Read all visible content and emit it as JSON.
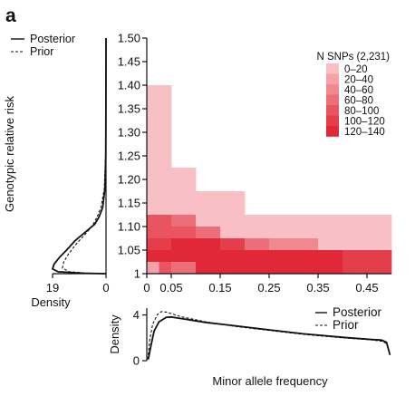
{
  "panel_label": "a",
  "chart_data": [
    {
      "type": "heatmap",
      "xlabel": "",
      "ylabel": "Genotypic relative risk",
      "x_ticks": [
        "0",
        "0.05",
        "0.15",
        "0.25",
        "0.35",
        "0.45"
      ],
      "x_tick_values": [
        0,
        0.05,
        0.15,
        0.25,
        0.35,
        0.45
      ],
      "y_ticks": [
        "1",
        "1.05",
        "1.10",
        "1.15",
        "1.20",
        "1.25",
        "1.30",
        "1.35",
        "1.40",
        "1.45",
        "1.50"
      ],
      "y_tick_values": [
        1,
        1.05,
        1.1,
        1.15,
        1.2,
        1.25,
        1.3,
        1.35,
        1.4,
        1.45,
        1.5
      ],
      "xlim": [
        0,
        0.5
      ],
      "ylim": [
        1,
        1.5
      ],
      "legend": {
        "title": "N SNPs (2,231)",
        "position": "top-right",
        "bins": [
          "0–20",
          "20–40",
          "40–60",
          "60–80",
          "80–100",
          "100–120",
          "120–140"
        ],
        "colors": [
          "#f8c0c4",
          "#f4a2a8",
          "#f08890",
          "#ec6e78",
          "#e85460",
          "#e43e4c",
          "#e02838"
        ]
      },
      "cells": [
        {
          "x0": 0,
          "x1": 0.05,
          "y0": 1.125,
          "y1": 1.4,
          "bin": 0
        },
        {
          "x0": 0.05,
          "x1": 0.1,
          "y0": 1.125,
          "y1": 1.225,
          "bin": 0
        },
        {
          "x0": 0.1,
          "x1": 0.15,
          "y0": 1.125,
          "y1": 1.175,
          "bin": 0
        },
        {
          "x0": 0.15,
          "x1": 0.2,
          "y0": 1.1,
          "y1": 1.175,
          "bin": 0
        },
        {
          "x0": 0.2,
          "x1": 0.5,
          "y0": 1.1,
          "y1": 1.125,
          "bin": 0
        },
        {
          "x0": 0,
          "x1": 0.05,
          "y0": 1.1,
          "y1": 1.125,
          "bin": 4
        },
        {
          "x0": 0.05,
          "x1": 0.1,
          "y0": 1.1,
          "y1": 1.125,
          "bin": 3
        },
        {
          "x0": 0.1,
          "x1": 0.15,
          "y0": 1.1,
          "y1": 1.125,
          "bin": 0
        },
        {
          "x0": 0.15,
          "x1": 0.2,
          "y0": 1.1,
          "y1": 1.125,
          "bin": 0
        },
        {
          "x0": 0,
          "x1": 0.05,
          "y0": 1.075,
          "y1": 1.1,
          "bin": 4
        },
        {
          "x0": 0.05,
          "x1": 0.1,
          "y0": 1.075,
          "y1": 1.1,
          "bin": 4
        },
        {
          "x0": 0.1,
          "x1": 0.15,
          "y0": 1.075,
          "y1": 1.1,
          "bin": 3
        },
        {
          "x0": 0.15,
          "x1": 0.5,
          "y0": 1.075,
          "y1": 1.1,
          "bin": 0
        },
        {
          "x0": 0,
          "x1": 0.05,
          "y0": 1.05,
          "y1": 1.075,
          "bin": 5
        },
        {
          "x0": 0.05,
          "x1": 0.15,
          "y0": 1.05,
          "y1": 1.075,
          "bin": 6
        },
        {
          "x0": 0.15,
          "x1": 0.2,
          "y0": 1.05,
          "y1": 1.075,
          "bin": 5
        },
        {
          "x0": 0.2,
          "x1": 0.25,
          "y0": 1.05,
          "y1": 1.075,
          "bin": 3
        },
        {
          "x0": 0.25,
          "x1": 0.35,
          "y0": 1.05,
          "y1": 1.075,
          "bin": 2
        },
        {
          "x0": 0.35,
          "x1": 0.5,
          "y0": 1.05,
          "y1": 1.075,
          "bin": 0
        },
        {
          "x0": 0,
          "x1": 0.05,
          "y0": 1.025,
          "y1": 1.05,
          "bin": 6
        },
        {
          "x0": 0.05,
          "x1": 0.4,
          "y0": 1.025,
          "y1": 1.05,
          "bin": 6
        },
        {
          "x0": 0.4,
          "x1": 0.5,
          "y0": 1.025,
          "y1": 1.05,
          "bin": 5
        },
        {
          "x0": 0,
          "x1": 0.025,
          "y0": 1.0,
          "y1": 1.025,
          "bin": 1
        },
        {
          "x0": 0.025,
          "x1": 0.05,
          "y0": 1.0,
          "y1": 1.025,
          "bin": 4
        },
        {
          "x0": 0.05,
          "x1": 0.1,
          "y0": 1.0,
          "y1": 1.025,
          "bin": 3
        },
        {
          "x0": 0.1,
          "x1": 0.4,
          "y0": 1.0,
          "y1": 1.025,
          "bin": 6
        },
        {
          "x0": 0.4,
          "x1": 0.5,
          "y0": 1.0,
          "y1": 1.025,
          "bin": 5
        }
      ]
    },
    {
      "type": "line",
      "xlabel": "Density",
      "ylabel": "",
      "x_ticks": [
        "19",
        "0"
      ],
      "x_tick_values": [
        19,
        0
      ],
      "xlim": [
        19,
        0
      ],
      "ylim": [
        1,
        1.5
      ],
      "legend": {
        "position": "top-left",
        "entries": [
          "Posterior",
          "Prior"
        ]
      },
      "series": [
        {
          "name": "Posterior",
          "style": "solid",
          "points": [
            [
              0,
              1.5
            ],
            [
              0.02,
              1.35
            ],
            [
              0.1,
              1.25
            ],
            [
              0.4,
              1.18
            ],
            [
              1.2,
              1.14
            ],
            [
              2.5,
              1.12
            ],
            [
              4,
              1.105
            ],
            [
              7,
              1.09
            ],
            [
              11,
              1.07
            ],
            [
              14,
              1.05
            ],
            [
              16.5,
              1.035
            ],
            [
              18.5,
              1.02
            ],
            [
              19,
              1.01
            ],
            [
              17,
              1.004
            ],
            [
              8,
              1.001
            ],
            [
              0,
              1.0
            ]
          ]
        },
        {
          "name": "Prior",
          "style": "dashed",
          "points": [
            [
              0,
              1.5
            ],
            [
              0.03,
              1.35
            ],
            [
              0.15,
              1.25
            ],
            [
              0.6,
              1.18
            ],
            [
              1.8,
              1.14
            ],
            [
              3.2,
              1.12
            ],
            [
              5,
              1.1
            ],
            [
              8,
              1.08
            ],
            [
              11,
              1.06
            ],
            [
              13.5,
              1.04
            ],
            [
              15,
              1.025
            ],
            [
              15.5,
              1.012
            ],
            [
              13,
              1.004
            ],
            [
              6,
              1.001
            ],
            [
              0,
              1.0
            ]
          ]
        }
      ]
    },
    {
      "type": "line",
      "xlabel": "Minor allele frequency",
      "ylabel": "Density",
      "y_ticks": [
        "0",
        "4"
      ],
      "y_tick_values": [
        0,
        4
      ],
      "xlim": [
        0,
        0.5
      ],
      "ylim": [
        0,
        4.6
      ],
      "legend": {
        "position": "top-right",
        "entries": [
          "Posterior",
          "Prior"
        ]
      },
      "series": [
        {
          "name": "Posterior",
          "style": "solid",
          "points": [
            [
              0.003,
              0.1
            ],
            [
              0.008,
              1.2
            ],
            [
              0.015,
              2.6
            ],
            [
              0.025,
              3.4
            ],
            [
              0.04,
              3.8
            ],
            [
              0.05,
              3.82
            ],
            [
              0.08,
              3.62
            ],
            [
              0.12,
              3.35
            ],
            [
              0.18,
              3.05
            ],
            [
              0.25,
              2.7
            ],
            [
              0.32,
              2.35
            ],
            [
              0.4,
              2.05
            ],
            [
              0.46,
              1.85
            ],
            [
              0.48,
              1.8
            ],
            [
              0.49,
              1.6
            ],
            [
              0.497,
              0.5
            ]
          ]
        },
        {
          "name": "Prior",
          "style": "dashed",
          "points": [
            [
              0.002,
              0.1
            ],
            [
              0.006,
              1.8
            ],
            [
              0.012,
              3.2
            ],
            [
              0.022,
              4.05
            ],
            [
              0.03,
              4.3
            ],
            [
              0.04,
              4.25
            ],
            [
              0.07,
              3.85
            ],
            [
              0.12,
              3.4
            ],
            [
              0.18,
              3.0
            ],
            [
              0.25,
              2.65
            ],
            [
              0.32,
              2.3
            ],
            [
              0.4,
              2.0
            ],
            [
              0.46,
              1.82
            ],
            [
              0.48,
              1.7
            ],
            [
              0.49,
              1.5
            ],
            [
              0.497,
              0.5
            ]
          ]
        }
      ]
    }
  ]
}
